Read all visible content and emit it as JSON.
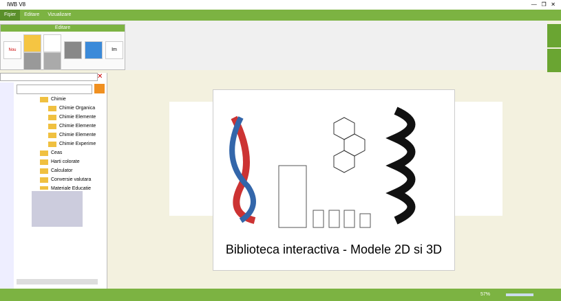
{
  "window": {
    "title": "IWB V8"
  },
  "menu": [
    "Fişier",
    "Editare",
    "Vizualizare"
  ],
  "ribbon": {
    "group": "Editare",
    "new_button": "Nou",
    "import_button": "Im"
  },
  "tree": [
    "Chimie",
    "Chimie Organica",
    "Chimie Elemente",
    "Chimie Elemente",
    "Chimie Elemente",
    "Chimie Experime",
    "Ceas",
    "Harti colorate",
    "Calculator",
    "Conversie valutara",
    "Materiale Educatie"
  ],
  "slide": {
    "caption": "Biblioteca interactiva - Modele 2D si 3D"
  },
  "status": {
    "zoom": "57%"
  }
}
